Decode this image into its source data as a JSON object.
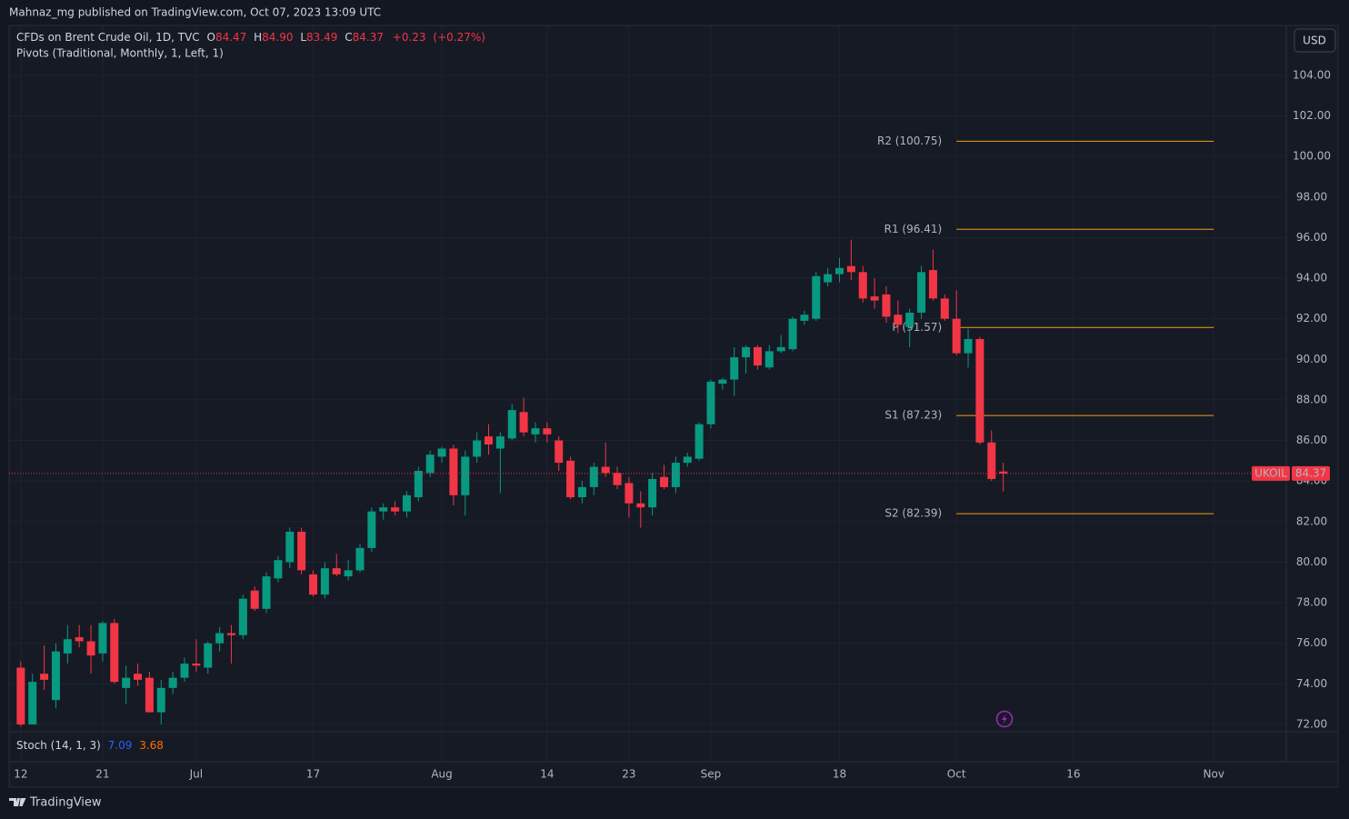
{
  "header": {
    "publisher": "Mahnaz_mg published on TradingView.com, Oct 07, 2023 13:09 UTC",
    "instrument": "CFDs on Brent Crude Oil, 1D, TVC",
    "ohlc_labels": [
      "O",
      "H",
      "L",
      "C"
    ],
    "change": "+0.23",
    "change_pct": "(+0.27%)",
    "indicator": "Pivots (Traditional, Monthly, 1, Left, 1)"
  },
  "currency": "USD",
  "footer": "TradingView",
  "chart_data": {
    "type": "candlestick",
    "symbol": "UKOIL",
    "up_color": "#089981",
    "down_color": "#f23645",
    "x": [
      0,
      1,
      2,
      3,
      4,
      5,
      6,
      7,
      8,
      9,
      10,
      11,
      12,
      13,
      14,
      15,
      16,
      17,
      18,
      19,
      20,
      21,
      22,
      23,
      24,
      25,
      26,
      27,
      28,
      29,
      30,
      31,
      32,
      33,
      34,
      35,
      36,
      37,
      38,
      39,
      40,
      41,
      42,
      43,
      44,
      45,
      46,
      47,
      48,
      49,
      50,
      51,
      52,
      53,
      54,
      55,
      56,
      57,
      58,
      59,
      60,
      61,
      62,
      63,
      64,
      65,
      66,
      67,
      68,
      69,
      70,
      71,
      72,
      73,
      74,
      75,
      76,
      77,
      78,
      79,
      80,
      81,
      82,
      83,
      84
    ],
    "open": [
      74.8,
      72.0,
      74.5,
      73.2,
      75.5,
      76.3,
      76.1,
      75.5,
      77.0,
      73.8,
      74.5,
      74.3,
      72.6,
      73.8,
      74.3,
      75.0,
      74.8,
      76.0,
      76.5,
      76.4,
      78.6,
      77.7,
      79.2,
      80.0,
      81.5,
      79.4,
      78.4,
      79.7,
      79.3,
      79.6,
      80.7,
      82.5,
      82.7,
      82.5,
      83.2,
      84.4,
      85.2,
      85.6,
      83.3,
      85.2,
      86.2,
      85.6,
      86.1,
      87.4,
      86.3,
      86.6,
      86.0,
      85.0,
      83.2,
      83.7,
      84.7,
      84.4,
      83.9,
      82.9,
      82.7,
      84.2,
      83.7,
      84.9,
      85.1,
      86.8,
      88.8,
      89.0,
      90.1,
      90.6,
      89.6,
      90.4,
      90.5,
      91.9,
      92.0,
      93.8,
      94.2,
      94.6,
      94.3,
      93.1,
      93.2,
      92.2,
      91.6,
      92.3,
      94.4,
      93.0,
      92.0,
      90.3,
      91.0,
      85.9,
      84.47
    ],
    "high": [
      75.1,
      74.5,
      75.9,
      76.0,
      76.9,
      76.9,
      76.9,
      77.1,
      77.2,
      74.9,
      75.0,
      74.6,
      74.2,
      74.6,
      75.3,
      76.2,
      76.1,
      76.8,
      76.9,
      78.4,
      78.8,
      79.5,
      80.3,
      81.7,
      81.7,
      79.6,
      80.0,
      80.4,
      80.1,
      80.9,
      82.7,
      82.9,
      83.0,
      83.5,
      84.7,
      85.5,
      85.7,
      85.8,
      85.5,
      86.4,
      86.8,
      86.4,
      87.8,
      88.1,
      86.9,
      86.9,
      86.2,
      85.2,
      84.0,
      84.9,
      85.9,
      84.7,
      84.2,
      83.5,
      84.4,
      84.8,
      85.2,
      85.4,
      86.9,
      89.0,
      89.1,
      90.6,
      90.7,
      90.7,
      90.7,
      91.2,
      92.1,
      92.4,
      94.3,
      94.5,
      95.0,
      95.9,
      94.6,
      94.0,
      93.6,
      92.9,
      92.5,
      94.6,
      95.4,
      93.2,
      93.4,
      91.5,
      91.1,
      86.5,
      84.9
    ],
    "low": [
      71.9,
      72.0,
      73.7,
      72.8,
      75.0,
      75.8,
      74.5,
      75.1,
      74.0,
      73.0,
      73.9,
      72.6,
      72.0,
      73.5,
      74.1,
      74.6,
      74.5,
      75.6,
      75.0,
      76.2,
      77.6,
      77.5,
      79.0,
      79.7,
      79.4,
      78.3,
      78.2,
      79.3,
      79.1,
      79.5,
      80.5,
      82.1,
      82.3,
      82.2,
      83.0,
      84.2,
      84.9,
      82.8,
      82.3,
      84.9,
      85.3,
      83.4,
      86.0,
      86.2,
      85.9,
      85.9,
      84.5,
      83.1,
      82.9,
      83.3,
      84.2,
      83.6,
      82.2,
      81.7,
      82.3,
      83.6,
      83.4,
      84.7,
      85.0,
      86.6,
      88.5,
      88.2,
      89.3,
      89.5,
      89.5,
      90.3,
      90.4,
      91.7,
      91.9,
      93.6,
      93.8,
      93.9,
      92.8,
      92.5,
      91.8,
      91.3,
      90.6,
      92.0,
      92.9,
      91.9,
      90.2,
      89.6,
      85.8,
      84.0,
      83.49
    ],
    "close": [
      72.0,
      74.1,
      74.2,
      75.6,
      76.2,
      76.1,
      75.4,
      77.0,
      74.1,
      74.3,
      74.2,
      72.6,
      73.8,
      74.3,
      75.0,
      74.9,
      76.0,
      76.5,
      76.4,
      78.2,
      77.7,
      79.3,
      80.1,
      81.5,
      79.6,
      78.4,
      79.7,
      79.4,
      79.6,
      80.7,
      82.5,
      82.7,
      82.5,
      83.3,
      84.5,
      85.3,
      85.6,
      83.3,
      85.2,
      86.0,
      85.8,
      86.2,
      87.5,
      86.4,
      86.6,
      86.3,
      84.9,
      83.2,
      83.7,
      84.7,
      84.4,
      83.8,
      82.9,
      82.7,
      84.1,
      83.7,
      84.9,
      85.2,
      86.8,
      88.9,
      89.0,
      90.1,
      90.6,
      89.7,
      90.4,
      90.6,
      92.0,
      92.2,
      94.1,
      94.2,
      94.5,
      94.3,
      93.0,
      92.9,
      92.1,
      91.7,
      92.3,
      94.3,
      93.0,
      92.0,
      90.3,
      91.0,
      85.9,
      84.1,
      84.37
    ],
    "last_value_labels": {
      "open": "84.47",
      "high": "84.90",
      "low": "83.49",
      "close": "84.37"
    },
    "xlim": [
      -1.0,
      108.2
    ],
    "xticks": [
      {
        "value": 0,
        "label": "12"
      },
      {
        "value": 7,
        "label": "21"
      },
      {
        "value": 15,
        "label": "Jul"
      },
      {
        "value": 25,
        "label": "17"
      },
      {
        "value": 36,
        "label": "Aug"
      },
      {
        "value": 45,
        "label": "14"
      },
      {
        "value": 52,
        "label": "23"
      },
      {
        "value": 59,
        "label": "Sep"
      },
      {
        "value": 70,
        "label": "18"
      },
      {
        "value": 80,
        "label": "Oct"
      },
      {
        "value": 90,
        "label": "16"
      },
      {
        "value": 102,
        "label": "Nov"
      }
    ],
    "ylim": [
      71.64,
      106.46
    ],
    "yticks": [
      {
        "value": 72,
        "label": "72.00"
      },
      {
        "value": 74,
        "label": "74.00"
      },
      {
        "value": 76,
        "label": "76.00"
      },
      {
        "value": 78,
        "label": "78.00"
      },
      {
        "value": 80,
        "label": "80.00"
      },
      {
        "value": 82,
        "label": "82.00"
      },
      {
        "value": 84,
        "label": "84.00"
      },
      {
        "value": 86,
        "label": "86.00"
      },
      {
        "value": 88,
        "label": "88.00"
      },
      {
        "value": 90,
        "label": "90.00"
      },
      {
        "value": 92,
        "label": "92.00"
      },
      {
        "value": 94,
        "label": "94.00"
      },
      {
        "value": 96,
        "label": "96.00"
      },
      {
        "value": 98,
        "label": "98.00"
      },
      {
        "value": 100,
        "label": "100.00"
      },
      {
        "value": 102,
        "label": "102.00"
      },
      {
        "value": 104,
        "label": "104.00"
      }
    ],
    "grid": true,
    "pivots": {
      "color": "#f59d1a",
      "range": [
        80,
        102
      ],
      "levels": [
        {
          "label": "R2 (100.75)",
          "value": 100.75
        },
        {
          "label": "R1 (96.41)",
          "value": 96.41
        },
        {
          "label": "P (91.57)",
          "value": 91.57
        },
        {
          "label": "S1 (87.23)",
          "value": 87.23
        },
        {
          "label": "S2 (82.39)",
          "value": 82.39
        }
      ]
    },
    "stoch": {
      "label": "Stoch (14, 1, 3)",
      "k": 7.09,
      "d": 3.68,
      "k_color": "#2962ff",
      "d_color": "#ff6d00"
    }
  }
}
